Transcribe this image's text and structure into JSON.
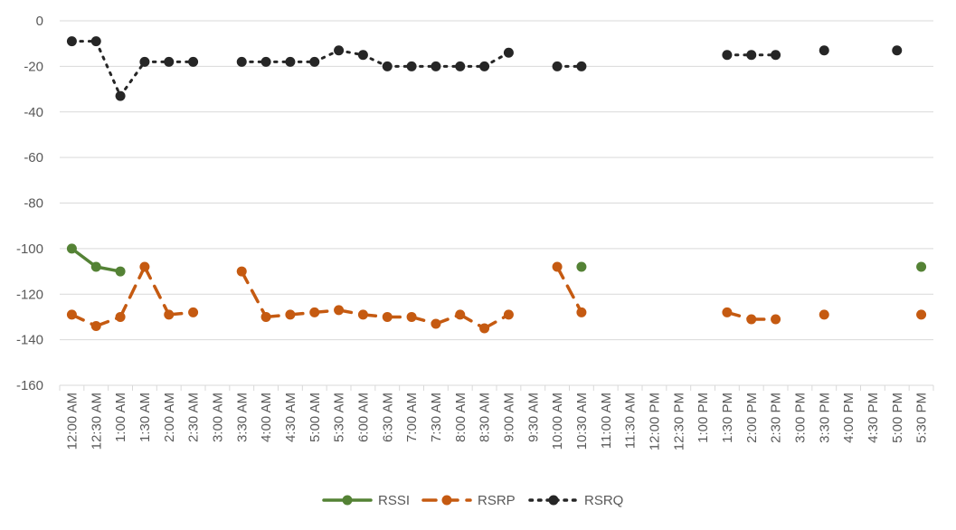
{
  "chart_data": {
    "type": "line",
    "title": "",
    "xlabel": "",
    "ylabel": "",
    "ylim": [
      -160,
      0
    ],
    "yticks": [
      0,
      -20,
      -40,
      -60,
      -80,
      -100,
      -120,
      -140,
      -160
    ],
    "grid": "horizontal",
    "legend_position": "bottom",
    "categories": [
      "12:00 AM",
      "12:30 AM",
      "1:00 AM",
      "1:30 AM",
      "2:00 AM",
      "2:30 AM",
      "3:00 AM",
      "3:30 AM",
      "4:00 AM",
      "4:30 AM",
      "5:00 AM",
      "5:30 AM",
      "6:00 AM",
      "6:30 AM",
      "7:00 AM",
      "7:30 AM",
      "8:00 AM",
      "8:30 AM",
      "9:00 AM",
      "9:30 AM",
      "10:00 AM",
      "10:30 AM",
      "11:00 AM",
      "11:30 AM",
      "12:00 PM",
      "12:30 PM",
      "1:00 PM",
      "1:30 PM",
      "2:00 PM",
      "2:30 PM",
      "3:00 PM",
      "3:30 PM",
      "4:00 PM",
      "4:30 PM",
      "5:00 PM",
      "5:30 PM"
    ],
    "series": [
      {
        "name": "RSSI",
        "color": "#548235",
        "line_style": "solid",
        "values": [
          -100,
          -108,
          -110,
          null,
          null,
          null,
          null,
          null,
          null,
          null,
          null,
          null,
          null,
          null,
          null,
          null,
          null,
          null,
          null,
          null,
          null,
          -108,
          null,
          null,
          null,
          null,
          null,
          null,
          null,
          null,
          null,
          null,
          null,
          null,
          null,
          -108
        ]
      },
      {
        "name": "RSRP",
        "color": "#C55A11",
        "line_style": "dashed",
        "values": [
          -129,
          -134,
          -130,
          -108,
          -129,
          -128,
          null,
          -110,
          -130,
          -129,
          -128,
          -127,
          -129,
          -130,
          -130,
          -133,
          -129,
          -135,
          -129,
          null,
          -108,
          -128,
          null,
          null,
          null,
          null,
          null,
          -128,
          -131,
          -131,
          null,
          -129,
          null,
          null,
          null,
          -129
        ]
      },
      {
        "name": "RSRQ",
        "color": "#262626",
        "line_style": "dotted",
        "values": [
          -9,
          -9,
          -33,
          -18,
          -18,
          -18,
          null,
          -18,
          -18,
          -18,
          -18,
          -13,
          -15,
          -20,
          -20,
          -20,
          -20,
          -20,
          -14,
          null,
          -20,
          -20,
          null,
          null,
          null,
          null,
          null,
          -15,
          -15,
          -15,
          null,
          -13,
          null,
          null,
          -13,
          null
        ]
      }
    ]
  }
}
